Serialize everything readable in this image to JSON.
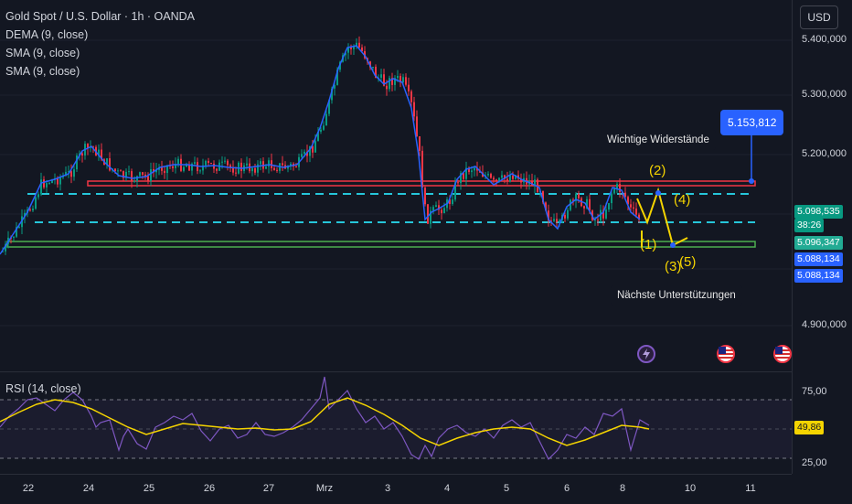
{
  "legend": {
    "title": "Gold Spot / U.S. Dollar · 1h · OANDA",
    "indicators": [
      "DEMA (9, close)",
      "SMA (9, close)",
      "SMA (9, close)"
    ]
  },
  "rsi_legend": "RSI (14, close)",
  "currency_button": "USD",
  "price_axis": {
    "ticks": [
      "5.400,000",
      "5.300,000",
      "5.200,000",
      "4.900,000"
    ],
    "tags": [
      {
        "text": "5.098,535",
        "color": "#089981"
      },
      {
        "text": "38:26",
        "color": "#089981"
      },
      {
        "text": "5.096,347",
        "color": "#22ab94"
      },
      {
        "text": "5.088,134",
        "color": "#2962ff"
      },
      {
        "text": "5.088,134",
        "color": "#2962ff"
      }
    ]
  },
  "rsi_axis": {
    "ticks": [
      "75,00",
      "25,00"
    ],
    "tag": "49,86"
  },
  "time_axis": [
    "22",
    "24",
    "25",
    "26",
    "27",
    "Mrz",
    "3",
    "4",
    "5",
    "6",
    "8",
    "10",
    "11"
  ],
  "annotations": {
    "resistance": "Wichtige Widerstände",
    "support": "Nächste Unterstützungen",
    "target": "5.153,812",
    "waves": [
      "(1)",
      "(2)",
      "(3)",
      "(4)",
      "(5)"
    ]
  },
  "colors": {
    "background": "#131722",
    "up": "#089981",
    "down": "#f23645",
    "dema": "#2962ff",
    "dashed": "#26c6da",
    "rsi": "#7e57c2",
    "rsi_ma": "#f5d400"
  },
  "icons": [
    "lightning-event-icon",
    "us-flag-event-icon",
    "us-flag-event-icon"
  ]
}
